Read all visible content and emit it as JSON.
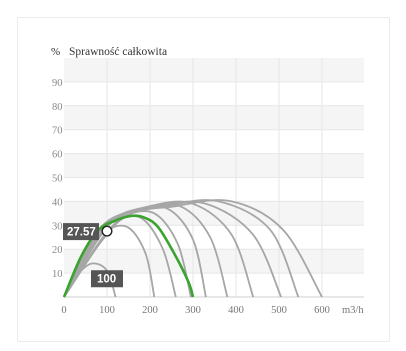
{
  "chart_data": {
    "type": "line",
    "title": "Sprawność całkowita",
    "ylabel": "%",
    "xlabel": "m3/h",
    "ylim": [
      0,
      100
    ],
    "xlim": [
      0,
      730
    ],
    "grid": true,
    "y_ticks": [
      "10",
      "20",
      "30",
      "40",
      "50",
      "60",
      "70",
      "80",
      "90"
    ],
    "x_ticks": [
      "0",
      "100",
      "200",
      "300",
      "400",
      "500",
      "600"
    ],
    "x_tick_values": [
      0,
      100,
      200,
      300,
      400,
      500,
      600
    ],
    "y_tick_values": [
      10,
      20,
      30,
      40,
      50,
      60,
      70,
      80,
      90
    ],
    "colors": {
      "curves": "#a6a6a6",
      "highlight": "#3aa32f",
      "grid": "#e6e6e6",
      "band": "#f5f5f5",
      "label_bg": "#555555"
    },
    "series": [
      {
        "x": [
          0,
          30,
          65,
          100,
          120
        ],
        "y": [
          0,
          9,
          14,
          11,
          0
        ]
      },
      {
        "x": [
          0,
          50,
          100,
          150,
          190,
          210
        ],
        "y": [
          0,
          19,
          28,
          29,
          18,
          0
        ]
      },
      {
        "x": [
          0,
          60,
          120,
          180,
          230,
          260
        ],
        "y": [
          0,
          23,
          32,
          33,
          20,
          0
        ]
      },
      {
        "x": [
          0,
          70,
          140,
          210,
          265,
          295
        ],
        "y": [
          0,
          26,
          34,
          35,
          22,
          0
        ]
      },
      {
        "x": [
          0,
          80,
          160,
          240,
          300,
          330
        ],
        "y": [
          0,
          28,
          36,
          37,
          24,
          0
        ]
      },
      {
        "x": [
          0,
          90,
          180,
          270,
          340,
          380
        ],
        "y": [
          0,
          29,
          37,
          38,
          25,
          0
        ]
      },
      {
        "x": [
          0,
          100,
          200,
          300,
          390,
          440
        ],
        "y": [
          0,
          30,
          38,
          39,
          26,
          0
        ]
      },
      {
        "x": [
          0,
          110,
          220,
          330,
          440,
          505
        ],
        "y": [
          0,
          31,
          38,
          39,
          26,
          0
        ]
      },
      {
        "x": [
          0,
          120,
          240,
          360,
          480,
          545
        ],
        "y": [
          0,
          31,
          38,
          40,
          28,
          0
        ]
      },
      {
        "x": [
          0,
          130,
          260,
          390,
          510,
          600
        ],
        "y": [
          0,
          32,
          38,
          40,
          28,
          0
        ]
      }
    ],
    "highlight": {
      "x": [
        0,
        40,
        80,
        120,
        160,
        190,
        220,
        260,
        290,
        300
      ],
      "y": [
        0,
        17,
        28,
        32,
        34,
        33,
        29,
        17,
        6,
        0
      ]
    },
    "point": {
      "x": 100,
      "y": 27.57,
      "label": "27.57"
    },
    "curve_label": {
      "x": 100,
      "y": 4.5,
      "label": "100"
    }
  }
}
